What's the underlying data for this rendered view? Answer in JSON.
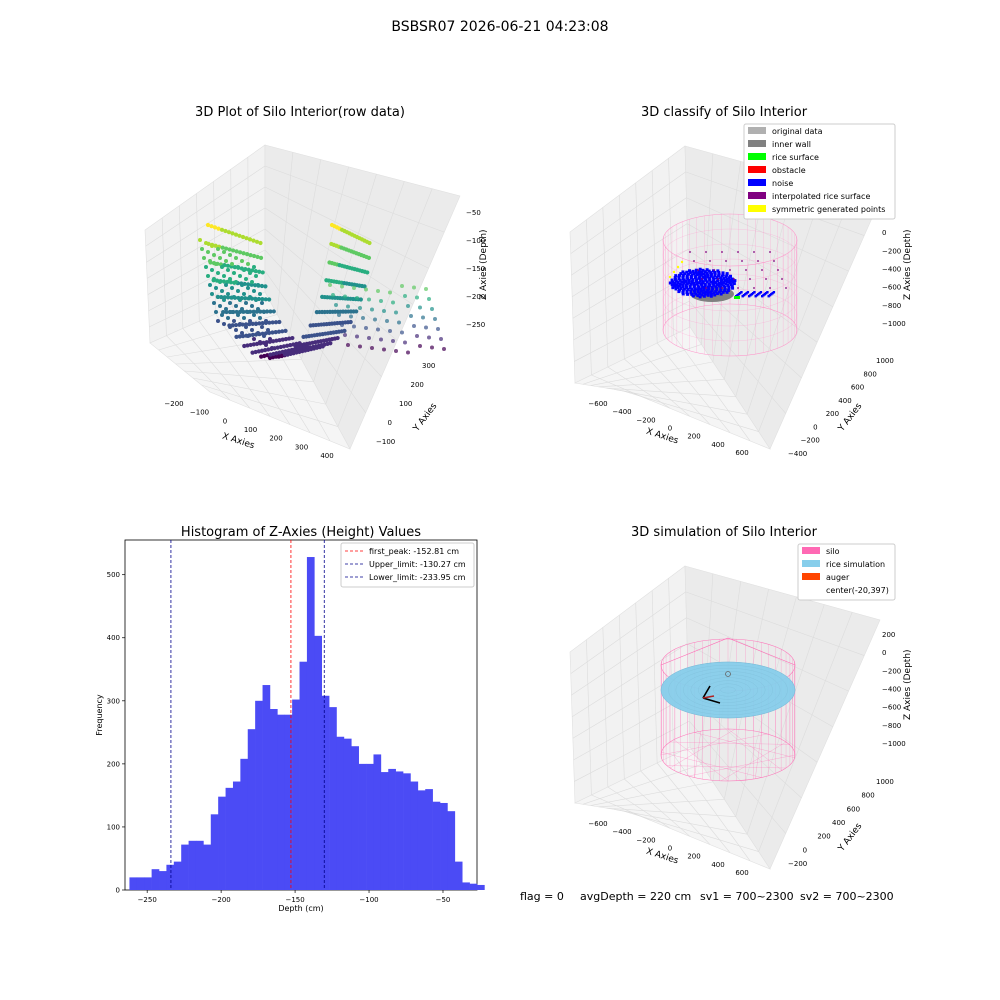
{
  "figure": {
    "suptitle": "BSBSR07 2026-06-21 04:23:08",
    "footer": {
      "flag": "flag = 0",
      "avg_depth": "avgDepth = 220 cm",
      "sv1": "sv1 = 700~2300",
      "sv2": "sv2 = 700~2300"
    }
  },
  "colors": {
    "hist_bar": "#4b4bf5",
    "first_peak_line": "#ff0000",
    "limit_line": "#00008b",
    "silo_pink": "#ff69b4",
    "rice_sim": "#87ceeb",
    "auger": "#ff4500",
    "original_data": "#b0b0b0",
    "inner_wall": "#808080",
    "rice_surface": "#00ff00",
    "obstacle": "#ff0000",
    "noise": "#0000ff",
    "interpolated": "#800080",
    "symmetric": "#ffff00"
  },
  "chart_data": [
    {
      "type": "scatter3d",
      "title": "3D Plot of Silo Interior(row data)",
      "xlabel": "X Axies",
      "ylabel": "Y Axies",
      "zlabel": "Z Axies (Depth)",
      "xticks": [
        "−200",
        "−100",
        "0",
        "100",
        "200",
        "300",
        "400"
      ],
      "yticks": [
        "−100",
        "0",
        "100",
        "200",
        "300"
      ],
      "zticks": [
        "−50",
        "−100",
        "−150",
        "−200",
        "−250"
      ],
      "colormap": "viridis"
    },
    {
      "type": "scatter3d",
      "title": "3D classify of Silo Interior",
      "xlabel": "X Axies",
      "ylabel": "Y Axies",
      "zlabel": "Z Axies (Depth)",
      "xticks": [
        "−600",
        "−400",
        "−200",
        "0",
        "200",
        "400",
        "600"
      ],
      "yticks": [
        "−400",
        "−200",
        "0",
        "200",
        "400",
        "600",
        "800",
        "1000"
      ],
      "zticks": [
        "200",
        "0",
        "−200",
        "−400",
        "−600",
        "−800",
        "−1000"
      ],
      "legend": [
        {
          "label": "original data",
          "color": "#b0b0b0"
        },
        {
          "label": "inner wall",
          "color": "#808080"
        },
        {
          "label": "rice surface",
          "color": "#00ff00"
        },
        {
          "label": "obstacle",
          "color": "#ff0000"
        },
        {
          "label": "noise",
          "color": "#0000ff"
        },
        {
          "label": "interpolated rice surface",
          "color": "#800080"
        },
        {
          "label": "symmetric generated points",
          "color": "#ffff00"
        }
      ]
    },
    {
      "type": "bar",
      "title": "Histogram of Z-Axies (Height) Values",
      "xlabel": "Depth (cm)",
      "ylabel": "Frequency",
      "xlim": [
        -265,
        -27
      ],
      "ylim": [
        0,
        555
      ],
      "xticks": [
        -250,
        -200,
        -150,
        -100,
        -50
      ],
      "yticks": [
        0,
        100,
        200,
        300,
        400,
        500
      ],
      "bin_start": -262,
      "bin_width": 5,
      "values": [
        20,
        20,
        20,
        33,
        30,
        40,
        45,
        72,
        78,
        78,
        72,
        120,
        148,
        162,
        172,
        208,
        255,
        300,
        325,
        287,
        278,
        278,
        302,
        362,
        528,
        403,
        308,
        290,
        243,
        240,
        228,
        200,
        200,
        215,
        187,
        192,
        188,
        185,
        172,
        158,
        160,
        140,
        138,
        125,
        45,
        12,
        10,
        8
      ],
      "vlines": [
        {
          "x": -152.81,
          "label": "first_peak: -152.81 cm",
          "color": "#ff0000"
        },
        {
          "x": -130.27,
          "label": "Upper_limit: -130.27 cm",
          "color": "#00008b"
        },
        {
          "x": -233.95,
          "label": "Lower_limit: -233.95 cm",
          "color": "#00008b"
        }
      ]
    },
    {
      "type": "surface3d",
      "title": "3D simulation of Silo Interior",
      "xlabel": "X Axies",
      "ylabel": "Y Axies",
      "zlabel": "Z Axies (Depth)",
      "xticks": [
        "−600",
        "−400",
        "−200",
        "0",
        "200",
        "400",
        "600"
      ],
      "yticks": [
        "−200",
        "0",
        "200",
        "400",
        "600",
        "800",
        "1000"
      ],
      "zticks": [
        "200",
        "0",
        "−200",
        "−400",
        "−600",
        "−800",
        "−1000"
      ],
      "legend": [
        {
          "label": "silo",
          "color": "#ff69b4"
        },
        {
          "label": "rice simulation",
          "color": "#87ceeb"
        },
        {
          "label": "auger",
          "color": "#ff4500"
        },
        {
          "label": "center(-20,397)",
          "color": ""
        }
      ]
    }
  ]
}
